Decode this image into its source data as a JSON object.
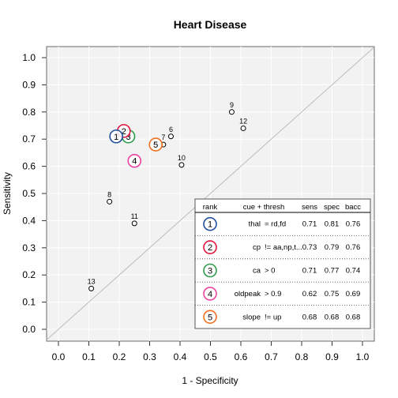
{
  "chart_data": {
    "type": "scatter",
    "title": "Heart Disease",
    "xlabel": "1 - Specificity",
    "ylabel": "Sensitivity",
    "xlim": [
      0,
      1
    ],
    "ylim": [
      0,
      1
    ],
    "x_ticks": [
      "0.0",
      "0.1",
      "0.2",
      "0.3",
      "0.4",
      "0.5",
      "0.6",
      "0.7",
      "0.8",
      "0.9",
      "1.0"
    ],
    "y_ticks": [
      "0.0",
      "0.1",
      "0.2",
      "0.3",
      "0.4",
      "0.5",
      "0.6",
      "0.7",
      "0.8",
      "0.9",
      "1.0"
    ],
    "grid": true,
    "diagonal": true,
    "points": [
      {
        "label": "6",
        "x": 0.37,
        "y": 0.71
      },
      {
        "label": "7",
        "x": 0.345,
        "y": 0.68
      },
      {
        "label": "8",
        "x": 0.168,
        "y": 0.47
      },
      {
        "label": "9",
        "x": 0.57,
        "y": 0.8
      },
      {
        "label": "10",
        "x": 0.405,
        "y": 0.605
      },
      {
        "label": "11",
        "x": 0.25,
        "y": 0.39
      },
      {
        "label": "12",
        "x": 0.608,
        "y": 0.74
      },
      {
        "label": "13",
        "x": 0.108,
        "y": 0.15
      }
    ],
    "ranked": [
      {
        "rank": "1",
        "x": 0.19,
        "y": 0.71,
        "color": "#1f4e9c",
        "cue": "thal",
        "thresh": "= rd,fd",
        "sens": "0.71",
        "spec": "0.81",
        "bacc": "0.76"
      },
      {
        "rank": "2",
        "x": 0.215,
        "y": 0.73,
        "color": "#e0143c",
        "cue": "cp",
        "thresh": "!= aa,np,t...",
        "sens": "0.73",
        "spec": "0.79",
        "bacc": "0.76"
      },
      {
        "rank": "3",
        "x": 0.23,
        "y": 0.71,
        "color": "#2e9a4a",
        "cue": "ca",
        "thresh": "> 0",
        "sens": "0.71",
        "spec": "0.77",
        "bacc": "0.74"
      },
      {
        "rank": "4",
        "x": 0.25,
        "y": 0.62,
        "color": "#e8439e",
        "cue": "oldpeak",
        "thresh": "> 0.9",
        "sens": "0.62",
        "spec": "0.75",
        "bacc": "0.69"
      },
      {
        "rank": "5",
        "x": 0.32,
        "y": 0.68,
        "color": "#f07020",
        "cue": "slope",
        "thresh": "!= up",
        "sens": "0.68",
        "spec": "0.68",
        "bacc": "0.68"
      }
    ],
    "table_headers": {
      "rank": "rank",
      "cue": "cue + thresh",
      "sens": "sens",
      "spec": "spec",
      "bacc": "bacc"
    },
    "colors": {
      "panel": "#f2f2f2",
      "grid": "#ffffff",
      "diagonal": "#bdbdbd"
    }
  }
}
